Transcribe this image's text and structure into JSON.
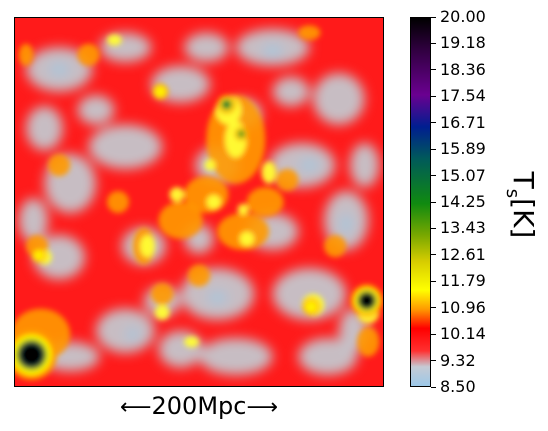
{
  "chart_data": {
    "type": "heatmap",
    "colorbar": {
      "label_main": "T",
      "label_sub": "s",
      "label_unit": "[K]",
      "min": 8.5,
      "max": 20.0,
      "ticks": [
        "20.00",
        "19.18",
        "18.36",
        "17.54",
        "16.71",
        "15.89",
        "15.07",
        "14.25",
        "13.43",
        "12.61",
        "11.79",
        "10.96",
        "10.14",
        "9.32",
        "8.50"
      ],
      "colors": [
        {
          "v": 8.5,
          "c": "#9cc8e8"
        },
        {
          "v": 9.1,
          "c": "#c5cad4"
        },
        {
          "v": 9.6,
          "c": "#ff3030"
        },
        {
          "v": 10.3,
          "c": "#ff0000"
        },
        {
          "v": 10.9,
          "c": "#ff9a00"
        },
        {
          "v": 11.5,
          "c": "#ffff00"
        },
        {
          "v": 12.4,
          "c": "#d6cc00"
        },
        {
          "v": 13.2,
          "c": "#7aa800"
        },
        {
          "v": 14.2,
          "c": "#108a10"
        },
        {
          "v": 15.6,
          "c": "#005a5a"
        },
        {
          "v": 16.6,
          "c": "#001e90"
        },
        {
          "v": 17.6,
          "c": "#6a0090"
        },
        {
          "v": 19.0,
          "c": "#300040"
        },
        {
          "v": 20.0,
          "c": "#000000"
        }
      ]
    },
    "scale_bar": {
      "left_arrow": "⟵",
      "text": "200Mpc",
      "right_arrow": "⟶"
    }
  }
}
